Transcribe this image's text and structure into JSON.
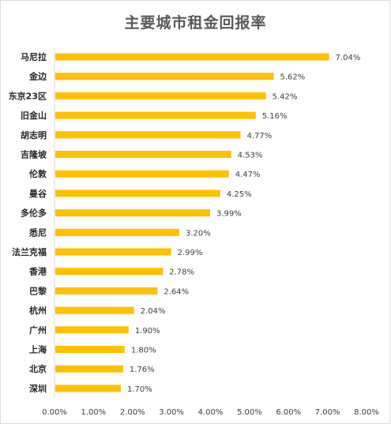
{
  "chart_data": {
    "type": "bar",
    "orientation": "horizontal",
    "title": "主要城市租金回报率",
    "categories": [
      "马尼拉",
      "金边",
      "东京23区",
      "旧金山",
      "胡志明",
      "吉隆坡",
      "伦敦",
      "曼谷",
      "多伦多",
      "悉尼",
      "法兰克福",
      "香港",
      "巴黎",
      "杭州",
      "广州",
      "上海",
      "北京",
      "深圳"
    ],
    "values": [
      7.04,
      5.62,
      5.42,
      5.16,
      4.77,
      4.53,
      4.47,
      4.25,
      3.99,
      3.2,
      2.99,
      2.78,
      2.64,
      2.04,
      1.9,
      1.8,
      1.76,
      1.7
    ],
    "value_labels": [
      "7.04%",
      "5.62%",
      "5.42%",
      "5.16%",
      "4.77%",
      "4.53%",
      "4.47%",
      "4.25%",
      "3.99%",
      "3.20%",
      "2.99%",
      "2.78%",
      "2.64%",
      "2.04%",
      "1.90%",
      "1.80%",
      "1.76%",
      "1.70%"
    ],
    "xlim": [
      0,
      8
    ],
    "xticks": [
      0,
      1,
      2,
      3,
      4,
      5,
      6,
      7,
      8
    ],
    "xtick_labels": [
      "0.00%",
      "1.00%",
      "2.00%",
      "3.00%",
      "4.00%",
      "5.00%",
      "6.00%",
      "7.00%",
      "8.00%"
    ],
    "grid": false,
    "legend": "none",
    "bar_color": "#FFC000"
  }
}
